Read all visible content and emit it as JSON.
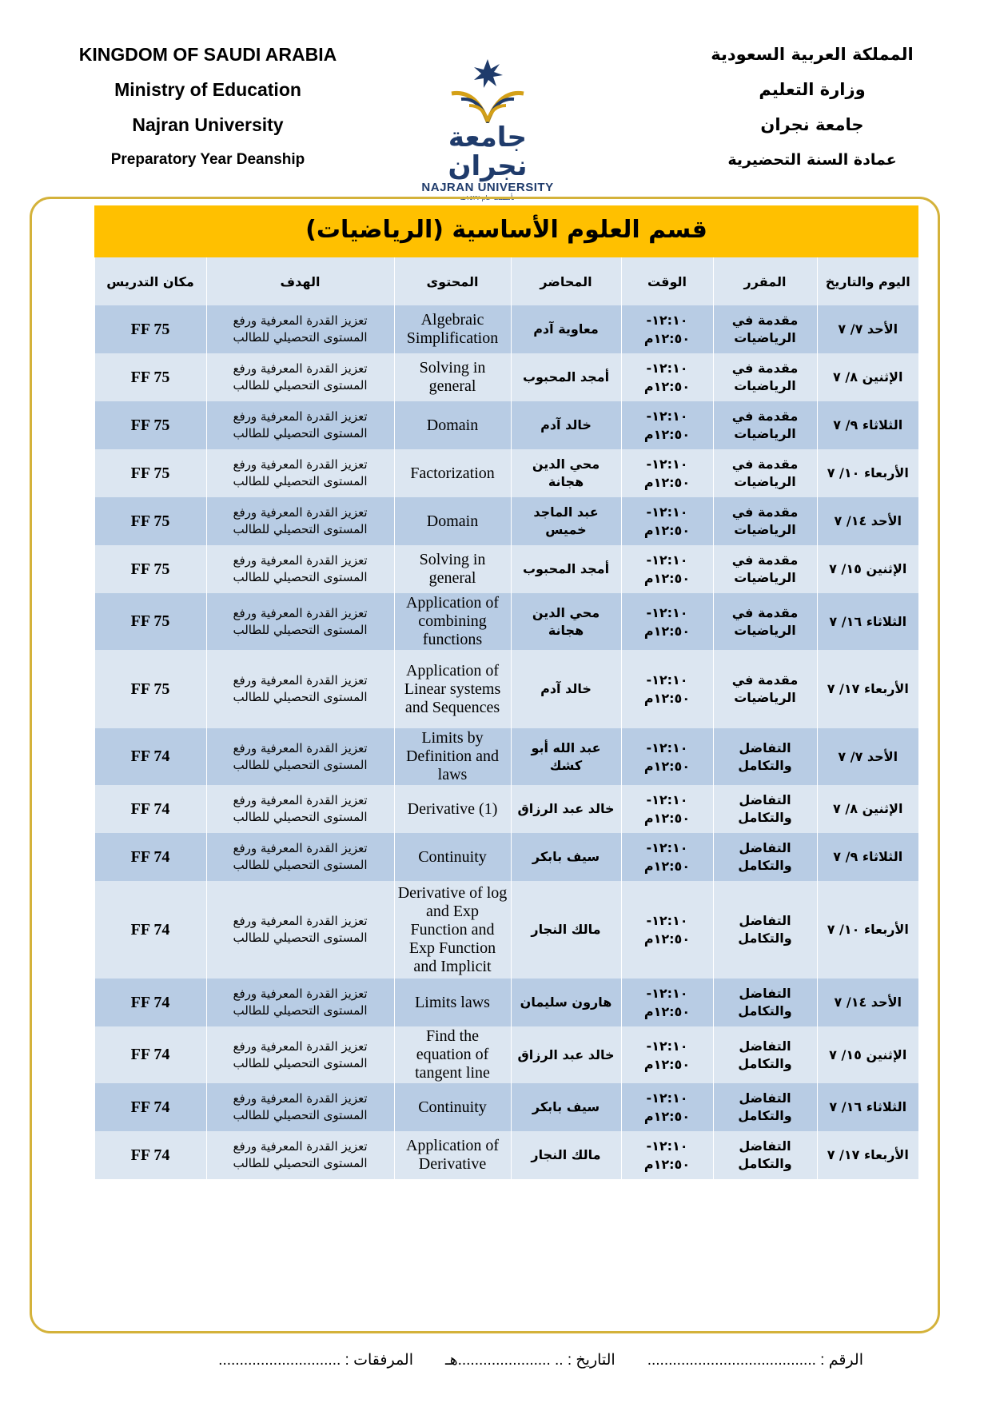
{
  "header_en": [
    "KINGDOM OF SAUDI ARABIA",
    "Ministry of Education",
    "Najran University",
    "Preparatory Year Deanship"
  ],
  "header_ar": [
    "المملكة العربية السعودية",
    "وزارة التعليم",
    "جامعة نجران",
    "عمادة السنة التحضيرية"
  ],
  "logo": {
    "ar": "جامعة نجران",
    "en": "NAJRAN UNIVERSITY",
    "sub": "تأسست عام ١٤٢٧هـ",
    "colors": {
      "navy": "#1f3b6b",
      "gold": "#d4a017"
    }
  },
  "table": {
    "title": "قسم العلوم الأساسية (الرياضيات)",
    "columns": [
      "اليوم والتاريخ",
      "المقرر",
      "الوقت",
      "المحاضر",
      "المحتوى",
      "الهدف",
      "مكان التدريس"
    ],
    "rows": [
      {
        "day": "الأحد ٧/ ٧",
        "course": "مقدمة في الرياضيات",
        "time1": "١٢:١٠-",
        "time2": "١٢:٥٠م",
        "lecturer": "معاوية آدم",
        "content": "Algebraic Simplification",
        "goal": "تعزيز القدرة المعرفية ورفع المستوى التحصيلي للطالب",
        "place": "FF 75"
      },
      {
        "day": "الإثنين ٨/ ٧",
        "course": "مقدمة في الرياضيات",
        "time1": "١٢:١٠-",
        "time2": "١٢:٥٠م",
        "lecturer": "أمجد المحبوب",
        "content": "Solving in general",
        "goal": "تعزيز القدرة المعرفية ورفع المستوى التحصيلي للطالب",
        "place": "FF 75"
      },
      {
        "day": "الثلاثاء ٩/ ٧",
        "course": "مقدمة في الرياضيات",
        "time1": "١٢:١٠-",
        "time2": "١٢:٥٠م",
        "lecturer": "خالد آدم",
        "content": "Domain",
        "goal": "تعزيز القدرة المعرفية ورفع المستوى التحصيلي للطالب",
        "place": "FF 75"
      },
      {
        "day": "الأربعاء ١٠/ ٧",
        "course": "مقدمة في الرياضيات",
        "time1": "١٢:١٠-",
        "time2": "١٢:٥٠م",
        "lecturer": "محي الدين هجانة",
        "content": "Factorization",
        "goal": "تعزيز القدرة المعرفية ورفع المستوى التحصيلي للطالب",
        "place": "FF 75"
      },
      {
        "day": "الأحد ١٤/ ٧",
        "course": "مقدمة في الرياضيات",
        "time1": "١٢:١٠-",
        "time2": "١٢:٥٠م",
        "lecturer": "عبد الماجد خميس",
        "content": "Domain",
        "goal": "تعزيز القدرة المعرفية ورفع المستوى التحصيلي للطالب",
        "place": "FF 75"
      },
      {
        "day": "الإثنين ١٥/ ٧",
        "course": "مقدمة في الرياضيات",
        "time1": "١٢:١٠-",
        "time2": "١٢:٥٠م",
        "lecturer": "أمجد المحبوب",
        "content": "Solving in general",
        "goal": "تعزيز القدرة المعرفية ورفع المستوى التحصيلي للطالب",
        "place": "FF 75"
      },
      {
        "day": "الثلاثاء ١٦/ ٧",
        "course": "مقدمة في الرياضيات",
        "time1": "١٢:١٠-",
        "time2": "١٢:٥٠م",
        "lecturer": "محي الدين هجانة",
        "content": "Application of combining functions",
        "goal": "تعزيز القدرة المعرفية ورفع المستوى التحصيلي للطالب",
        "place": "FF 75"
      },
      {
        "day": "الأربعاء ١٧/ ٧",
        "course": "مقدمة في الرياضيات",
        "time1": "١٢:١٠-",
        "time2": "١٢:٥٠م",
        "lecturer": "خالد آدم",
        "content": "Application of Linear systems and Sequences",
        "goal": "تعزيز القدرة المعرفية ورفع المستوى التحصيلي للطالب",
        "place": "FF 75"
      },
      {
        "day": "الأحد ٧/ ٧",
        "course": "التفاضل والتكامل",
        "time1": "١٢:١٠-",
        "time2": "١٢:٥٠م",
        "lecturer": "عبد الله أبو كشك",
        "content": "Limits by Definition and laws",
        "goal": "تعزيز القدرة المعرفية ورفع المستوى التحصيلي للطالب",
        "place": "FF 74"
      },
      {
        "day": "الإثنين ٨/ ٧",
        "course": "التفاضل والتكامل",
        "time1": "١٢:١٠-",
        "time2": "١٢:٥٠م",
        "lecturer": "خالد عبد الرزاق",
        "content": "Derivative (1)",
        "goal": "تعزيز القدرة المعرفية ورفع المستوى التحصيلي للطالب",
        "place": "FF 74"
      },
      {
        "day": "الثلاثاء ٩/ ٧",
        "course": "التفاضل والتكامل",
        "time1": "١٢:١٠-",
        "time2": "١٢:٥٠م",
        "lecturer": "سيف بابكر",
        "content": "Continuity",
        "goal": "تعزيز القدرة المعرفية ورفع المستوى التحصيلي للطالب",
        "place": "FF 74"
      },
      {
        "day": "الأربعاء ١٠/ ٧",
        "course": "التفاضل والتكامل",
        "time1": "١٢:١٠-",
        "time2": "١٢:٥٠م",
        "lecturer": "مالك النجار",
        "content": "Derivative of log and Exp Function and Exp Function and Implicit",
        "goal": "تعزيز القدرة المعرفية ورفع المستوى التحصيلي للطالب",
        "place": "FF 74"
      },
      {
        "day": "الأحد ١٤/ ٧",
        "course": "التفاضل والتكامل",
        "time1": "١٢:١٠-",
        "time2": "١٢:٥٠م",
        "lecturer": "هارون سليمان",
        "content": "Limits laws",
        "goal": "تعزيز القدرة المعرفية ورفع المستوى التحصيلي للطالب",
        "place": "FF 74"
      },
      {
        "day": "الإثنين ١٥/ ٧",
        "course": "التفاضل والتكامل",
        "time1": "١٢:١٠-",
        "time2": "١٢:٥٠م",
        "lecturer": "خالد عبد الرزاق",
        "content": "Find the equation of tangent line",
        "goal": "تعزيز القدرة المعرفية ورفع المستوى التحصيلي للطالب",
        "place": "FF 74"
      },
      {
        "day": "الثلاثاء ١٦/ ٧",
        "course": "التفاضل والتكامل",
        "time1": "١٢:١٠-",
        "time2": "١٢:٥٠م",
        "lecturer": "سيف بابكر",
        "content": "Continuity",
        "goal": "تعزيز القدرة المعرفية ورفع المستوى التحصيلي للطالب",
        "place": "FF 74"
      },
      {
        "day": "الأربعاء ١٧/ ٧",
        "course": "التفاضل والتكامل",
        "time1": "١٢:١٠-",
        "time2": "١٢:٥٠م",
        "lecturer": "مالك النجار",
        "content": "Application of Derivative",
        "goal": "تعزيز القدرة المعرفية ورفع المستوى التحصيلي للطالب",
        "place": "FF 74"
      }
    ]
  },
  "footer": {
    "number": "الرقم : ........................................",
    "date": "التاريخ : .. ......................هـ",
    "attachments": "المرفقات : ............................."
  },
  "colors": {
    "title_band": "#ffc000",
    "row_dark": "#b8cce4",
    "row_light": "#dce6f1",
    "frame": "#d4b23a"
  }
}
